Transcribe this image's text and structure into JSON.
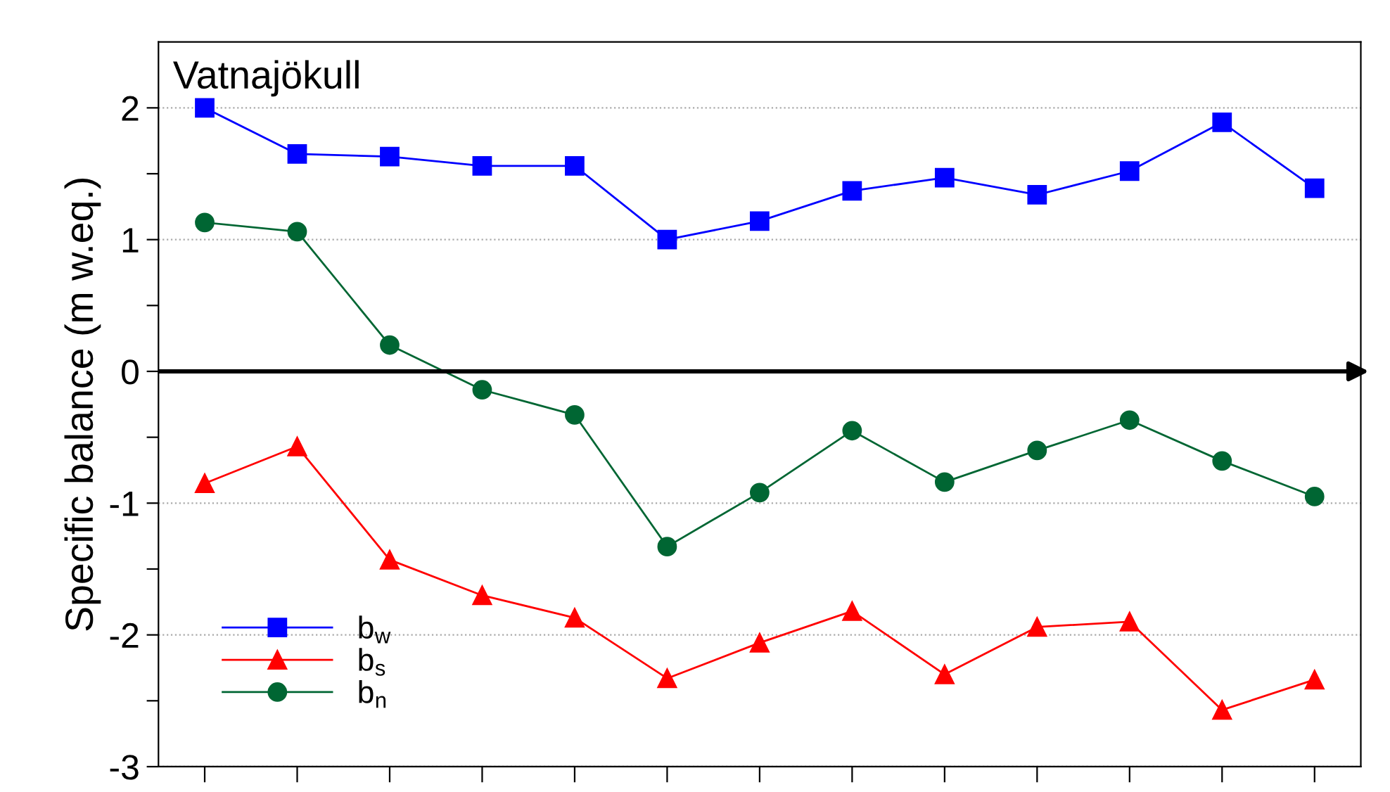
{
  "chart_data": {
    "type": "line",
    "title": "Vatnajökull",
    "ylabel": "Specific balance (m w.eq.)",
    "categories": [
      null,
      null,
      null,
      null,
      null,
      null,
      null,
      null,
      null,
      null,
      null,
      null,
      null
    ],
    "series": [
      {
        "name": "b$_{w}$",
        "color": "#0000ff",
        "marker": "square",
        "values": [
          2.0,
          1.65,
          1.63,
          1.56,
          1.56,
          1.0,
          1.14,
          1.37,
          1.47,
          1.34,
          1.52,
          1.89,
          1.39
        ]
      },
      {
        "name": "b$_{s}$",
        "color": "#ff0000",
        "marker": "triangle",
        "values": [
          -0.85,
          -0.57,
          -1.43,
          -1.7,
          -1.87,
          -2.33,
          -2.06,
          -1.82,
          -2.3,
          -1.94,
          -1.9,
          -2.57,
          -2.34
        ]
      },
      {
        "name": "b$_{n}$",
        "color": "#006633",
        "marker": "circle",
        "values": [
          1.13,
          1.06,
          0.2,
          -0.14,
          -0.33,
          -1.33,
          -0.92,
          -0.45,
          -0.84,
          -0.6,
          -0.37,
          -0.68,
          -0.95
        ]
      }
    ],
    "ylim": [
      -3,
      2.5
    ],
    "yticks": [
      -3,
      {
        "value": -2.5,
        "label": null
      },
      -2,
      {
        "value": -1.5,
        "label": null
      },
      -1,
      {
        "value": -0.5,
        "label": null
      },
      0,
      {
        "value": 0.5,
        "label": null
      },
      1,
      {
        "value": 1.5,
        "label": null
      },
      2
    ],
    "ref_lines": [
      {
        "axis": "y",
        "value": 0,
        "color": "#000000"
      }
    ],
    "grid": "y",
    "legend": "bottom left",
    "line_style": "solid"
  }
}
